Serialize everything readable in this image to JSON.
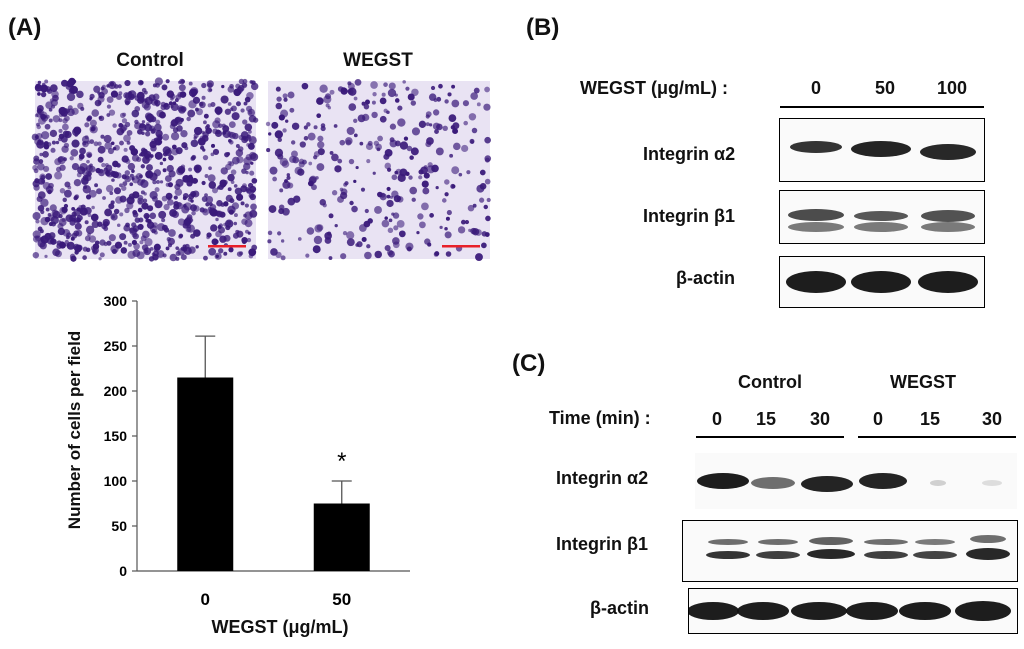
{
  "panel_a": {
    "label": "(A)",
    "images": [
      {
        "title": "Control",
        "density": "high"
      },
      {
        "title": "WEGST",
        "density": "low"
      }
    ],
    "bar_color": "#000000",
    "cell_color": "#3a1a7a",
    "background_color": "#e9e3f3",
    "scale_bar_color": "#e8202a"
  },
  "chart_data": {
    "type": "bar",
    "categories": [
      "0",
      "50"
    ],
    "values": [
      215,
      75
    ],
    "error": [
      46,
      25
    ],
    "annotations": [
      {
        "category": "50",
        "text": "*"
      }
    ],
    "xlabel": "WEGST (μg/mL)",
    "ylabel": "Number of  cells per field",
    "ylim": [
      0,
      300
    ],
    "yticks": [
      0,
      50,
      100,
      150,
      200,
      250,
      300
    ],
    "grid": false
  },
  "panel_b": {
    "label": "(B)",
    "dose_label": "WEGST (μg/mL) :",
    "lanes": [
      "0",
      "50",
      "100"
    ],
    "rows": [
      "Integrin α2",
      "Integrin β1",
      "β-actin"
    ]
  },
  "panel_c": {
    "label": "(C)",
    "groups": [
      "Control",
      "WEGST"
    ],
    "time_label": "Time (min) :",
    "lanes": [
      "0",
      "15",
      "30",
      "0",
      "15",
      "30"
    ],
    "rows": [
      "Integrin α2",
      "Integrin β1",
      "β-actin"
    ]
  }
}
